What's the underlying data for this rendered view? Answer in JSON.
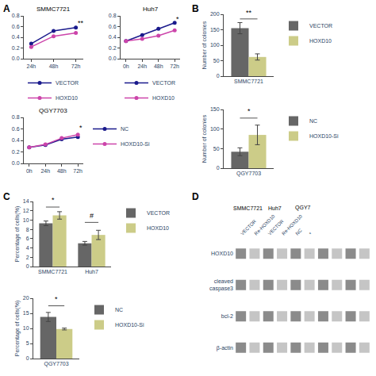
{
  "chart_data": [
    {
      "panel": "A",
      "type": "line",
      "title": "SMMC7721",
      "x": [
        24,
        48,
        72
      ],
      "series": [
        {
          "name": "VECTOR",
          "color": "#1a1a8c",
          "marker": "circle",
          "values": [
            0.28,
            0.52,
            0.58
          ]
        },
        {
          "name": "HOXD10",
          "color": "#cc44aa",
          "marker": "circle",
          "values": [
            0.22,
            0.42,
            0.48
          ]
        }
      ],
      "xlim": [
        16,
        80
      ],
      "xticks": [
        {
          "value": 24,
          "label": "24h"
        },
        {
          "value": 48,
          "label": "48h"
        },
        {
          "value": 72,
          "label": "72h"
        }
      ],
      "ylim": [
        0,
        0.8
      ],
      "yticks": [
        {
          "value": 0,
          "label": "0.0"
        },
        0.2,
        0.4,
        0.6,
        0.8
      ],
      "grid": false,
      "annotations": [
        {
          "text": "**",
          "x": 72,
          "y": 0.57
        }
      ]
    },
    {
      "panel": "A",
      "type": "line",
      "title": "Huh7",
      "x": [
        0,
        24,
        48,
        72
      ],
      "series": [
        {
          "name": "VECTOR",
          "color": "#1a1a8c",
          "marker": "circle",
          "values": [
            0.33,
            0.44,
            0.56,
            0.67
          ]
        },
        {
          "name": "HOXD10",
          "color": "#cc44aa",
          "marker": "circle",
          "values": [
            0.33,
            0.37,
            0.43,
            0.53
          ]
        }
      ],
      "xlim": [
        -8,
        80
      ],
      "xticks": [
        {
          "value": 0,
          "label": "0h"
        },
        {
          "value": 24,
          "label": "24h"
        },
        {
          "value": 48,
          "label": "48h"
        },
        {
          "value": 72,
          "label": "72h"
        }
      ],
      "ylim": [
        0,
        0.8
      ],
      "yticks": [
        {
          "value": 0,
          "label": "0.0"
        },
        0.2,
        0.4,
        0.6,
        0.8
      ],
      "grid": false,
      "annotations": [
        {
          "text": "*",
          "x": 72,
          "y": 0.63
        }
      ]
    },
    {
      "panel": "A",
      "type": "line",
      "title": "QGY7703",
      "x": [
        0,
        24,
        48,
        72
      ],
      "series": [
        {
          "name": "NC",
          "color": "#1a1a8c",
          "marker": "circle",
          "values": [
            0.28,
            0.32,
            0.42,
            0.46
          ]
        },
        {
          "name": "HOXD10-Si",
          "color": "#cc44aa",
          "marker": "circle",
          "values": [
            0.28,
            0.33,
            0.44,
            0.5
          ]
        }
      ],
      "xlim": [
        -8,
        80
      ],
      "xticks": [
        {
          "value": 0,
          "label": "0h"
        },
        {
          "value": 24,
          "label": "24h"
        },
        {
          "value": 48,
          "label": "48h"
        },
        {
          "value": 72,
          "label": "72h"
        }
      ],
      "ylim": [
        0,
        0.8
      ],
      "yticks": [
        {
          "value": 0,
          "label": "0.0"
        },
        0.2,
        0.4,
        0.6,
        0.8
      ],
      "grid": false,
      "annotations": [
        {
          "text": "*",
          "x": 72,
          "y": 0.52
        }
      ]
    },
    {
      "panel": "B",
      "type": "bar",
      "categories": [
        "SMMC7721"
      ],
      "series": [
        {
          "name": "VECTOR",
          "color": "#666666",
          "values": [
            155
          ],
          "errors": [
            18
          ]
        },
        {
          "name": "HOXD10",
          "color": "#cccc88",
          "values": [
            62
          ],
          "errors": [
            10
          ]
        }
      ],
      "ylabel": "Number of colonies",
      "ylim": [
        0,
        200
      ],
      "yticks": [
        0,
        50,
        100,
        150,
        200
      ],
      "grid": false,
      "annotations": [
        {
          "text": "**",
          "category": "SMMC7721",
          "y": 187,
          "line_y": 185
        }
      ]
    },
    {
      "panel": "B",
      "type": "bar",
      "categories": [
        "QGY7703"
      ],
      "series": [
        {
          "name": "NC",
          "color": "#666666",
          "values": [
            42
          ],
          "errors": [
            10
          ]
        },
        {
          "name": "HOXD10-Si",
          "color": "#cccc88",
          "values": [
            85
          ],
          "errors": [
            25
          ]
        }
      ],
      "ylabel": "Number of colonies",
      "ylim": [
        0,
        150
      ],
      "yticks": [
        0,
        50,
        100,
        150
      ],
      "grid": false,
      "annotations": [
        {
          "text": "*",
          "category": "QGY7703",
          "y": 131,
          "line_y": 128
        }
      ]
    },
    {
      "panel": "C",
      "type": "bar",
      "categories": [
        "SMMC7721",
        "Huh7"
      ],
      "series": [
        {
          "name": "VECTOR",
          "color": "#666666",
          "values": [
            9.3,
            5.0
          ],
          "errors": [
            0.5,
            0.4
          ]
        },
        {
          "name": "HOXD10",
          "color": "#cccc88",
          "values": [
            11.0,
            6.8
          ],
          "errors": [
            0.8,
            1.0
          ]
        }
      ],
      "ylabel": "Percentage of cells(%)",
      "ylim": [
        0,
        14
      ],
      "yticks": [
        0,
        2,
        4,
        6,
        8,
        10,
        12,
        14
      ],
      "grid": false,
      "annotations": [
        {
          "text": "*",
          "category": "SMMC7721",
          "y": 13.1,
          "line_y": 12.8
        },
        {
          "text": "#",
          "category": "Huh7",
          "y": 9.8,
          "line_y": 9.5
        }
      ]
    },
    {
      "panel": "C",
      "type": "bar",
      "categories": [
        "QGY7703"
      ],
      "series": [
        {
          "name": "NC",
          "color": "#666666",
          "values": [
            13.8
          ],
          "errors": [
            1.5
          ]
        },
        {
          "name": "HOXD10-Si",
          "color": "#cccc88",
          "values": [
            9.8
          ],
          "errors": [
            0.3
          ]
        }
      ],
      "ylabel": "Percentage of cells(%)",
      "ylim": [
        0,
        20
      ],
      "yticks": [
        0,
        5,
        10,
        15,
        20
      ],
      "grid": false,
      "annotations": [
        {
          "text": "*",
          "category": "QGY7703",
          "y": 18.0,
          "line_y": 17.5
        }
      ]
    },
    {
      "panel": "D",
      "type": "blot",
      "categories": [
        "VECTOR",
        "Re-HOXD10",
        "VECTOR",
        "Re-HOXD10",
        "NC",
        "*",
        null,
        null,
        null,
        null
      ],
      "rows": [
        "HOXD10",
        "cleaved\ncaspase3",
        "bcl-2",
        "β-actin"
      ],
      "colors": [
        "#777777",
        "#bbbbbb",
        "#777777",
        "#bbbbbb",
        "#777777",
        "#bbbbbb",
        "#777777",
        "#bbbbbb",
        "#777777",
        "#bbbbbb"
      ],
      "groups": [
        {
          "name": "SMMC7721",
          "lanes": [
            0,
            1
          ]
        },
        {
          "name": "Huh7",
          "lanes": [
            2,
            3
          ]
        },
        {
          "name": "QGY7",
          "lanes": [
            4,
            5
          ]
        }
      ]
    }
  ]
}
